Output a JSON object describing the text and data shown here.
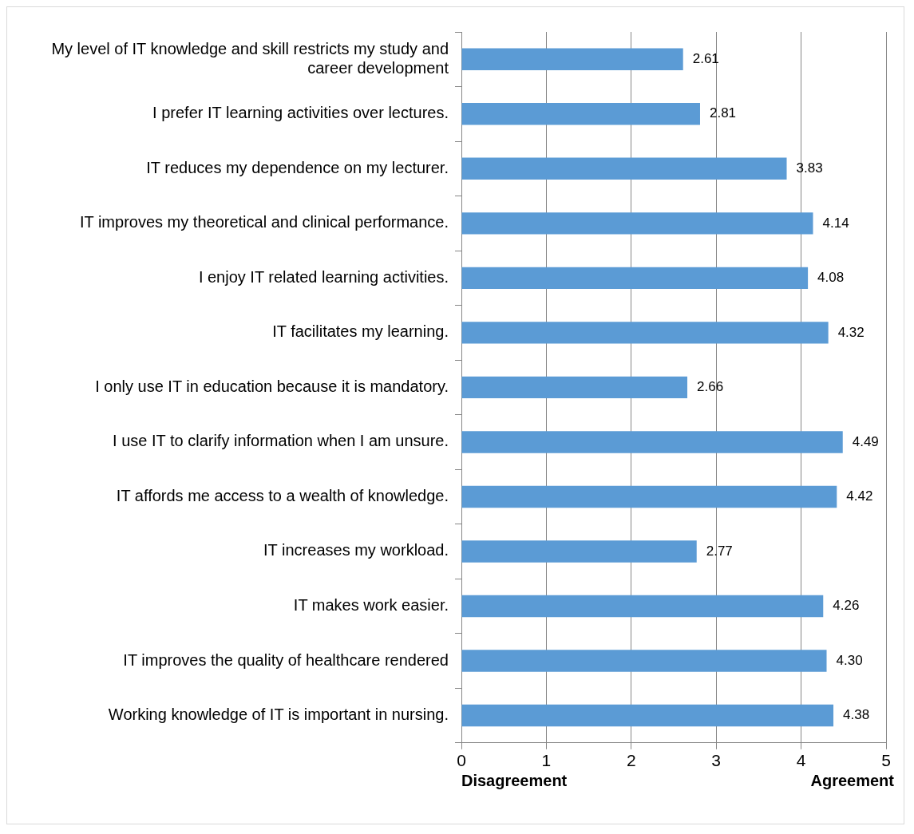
{
  "chart_data": {
    "type": "bar",
    "orientation": "horizontal",
    "categories": [
      "My level of IT knowledge and skill restricts my study and career development",
      "I prefer IT learning activities over lectures.",
      "IT reduces my dependence on my lecturer.",
      "IT improves my theoretical and clinical performance.",
      "I enjoy IT related learning activities.",
      "IT facilitates my learning.",
      "I only use IT in education because it is mandatory.",
      "I use IT to clarify information when I am unsure.",
      "IT affords me access to a wealth of knowledge.",
      "IT increases my workload.",
      "IT makes work easier.",
      "IT improves the quality of healthcare rendered",
      "Working knowledge of IT is important in nursing."
    ],
    "values": [
      2.61,
      2.81,
      3.83,
      4.14,
      4.08,
      4.32,
      2.66,
      4.49,
      4.42,
      2.77,
      4.26,
      4.3,
      4.38
    ],
    "value_labels": [
      "2.61",
      "2.81",
      "3.83",
      "4.14",
      "4.08",
      "4.32",
      "2.66",
      "4.49",
      "4.42",
      "2.77",
      "4.26",
      "4.30",
      "4.38"
    ],
    "color": "#5b9bd5",
    "xlim": [
      0,
      5
    ],
    "xticks": [
      0,
      1,
      2,
      3,
      4,
      5
    ],
    "grid": "x",
    "legend": false,
    "annotations": [
      "Disagreement",
      "Agreement"
    ]
  }
}
